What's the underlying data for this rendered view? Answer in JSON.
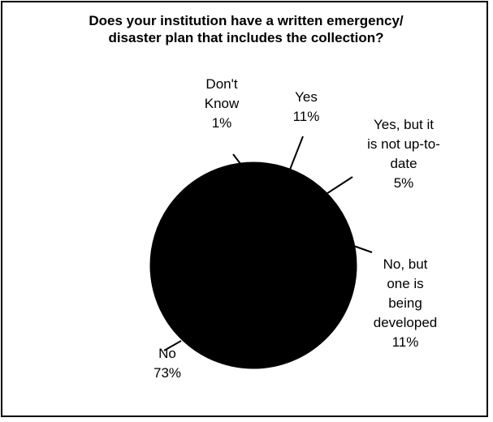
{
  "chart_data": {
    "type": "pie",
    "title": "Does your institution have a written emergency/\ndisaster plan that includes the collection?",
    "slices": [
      {
        "label_lines": [
          "Don't",
          "Know",
          "1%"
        ],
        "value": 1
      },
      {
        "label_lines": [
          "Yes",
          "11%"
        ],
        "value": 11
      },
      {
        "label_lines": [
          "Yes, but it",
          "is not up-to-",
          "date",
          "5%"
        ],
        "value": 5
      },
      {
        "label_lines": [
          "No, but",
          "one is",
          "being",
          "developed",
          "11%"
        ],
        "value": 11
      },
      {
        "label_lines": [
          "No",
          "73%"
        ],
        "value": 73
      }
    ],
    "colors": {
      "fill": "#000000",
      "background": "#ffffff",
      "line": "#000000"
    }
  }
}
